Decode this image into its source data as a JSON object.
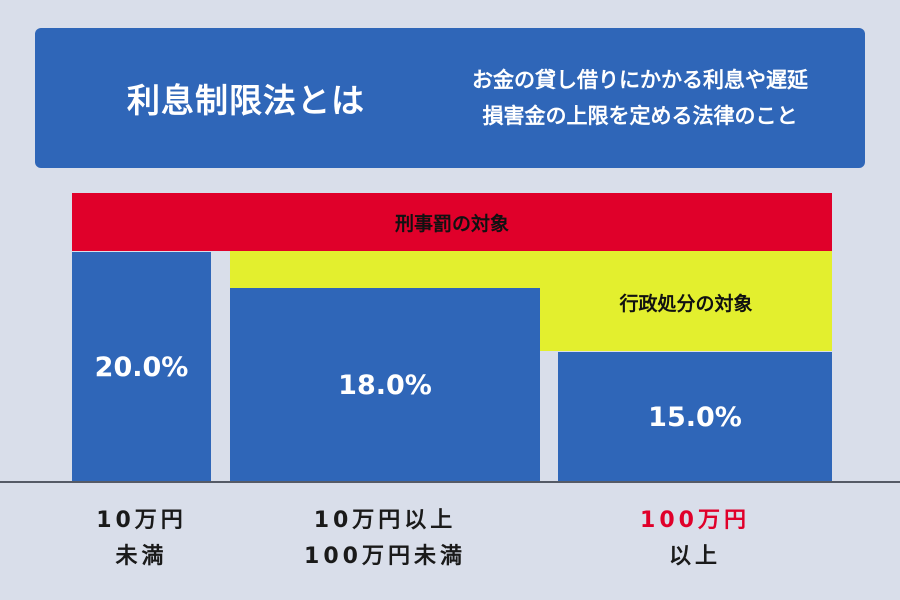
{
  "header": {
    "title": "利息制限法とは",
    "desc_line1": "お金の貸し借りにかかる利息や遅延",
    "desc_line2": "損害金の上限を定める法律のこと"
  },
  "bands": {
    "criminal": "刑事罰の対象",
    "administrative": "行政処分の対象"
  },
  "bars": [
    {
      "value": "20.0%"
    },
    {
      "value": "18.0%"
    },
    {
      "value": "15.0%"
    }
  ],
  "categories": [
    {
      "line1": "10万円",
      "line2": "未満"
    },
    {
      "line1": "10万円以上",
      "line2": "100万円未満"
    },
    {
      "line1": "100万円",
      "line2": "以上"
    }
  ],
  "colors": {
    "blue": "#2f66b8",
    "red": "#e0002a",
    "yellow": "#e3ef2e",
    "background": "#d9deea"
  }
}
